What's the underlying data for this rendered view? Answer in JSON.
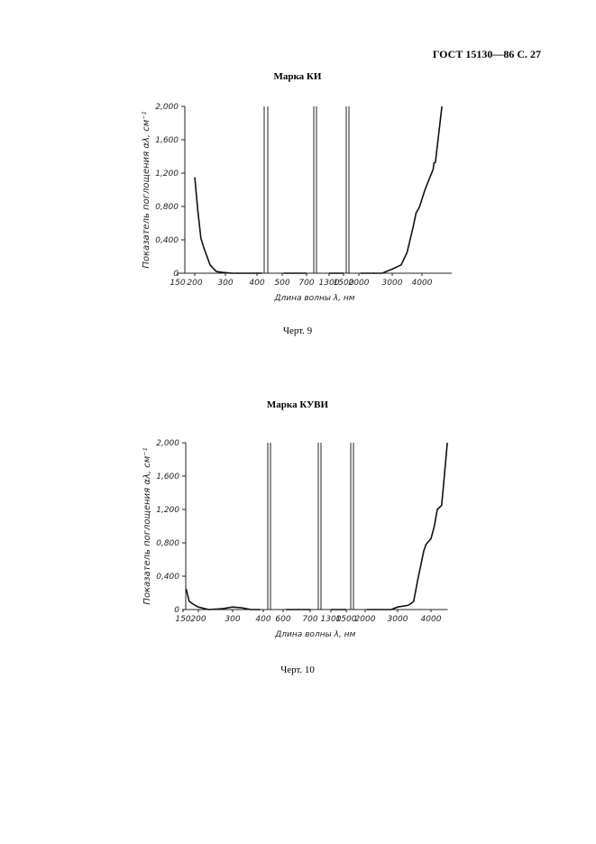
{
  "header": {
    "title": "ГОСТ 15130—86 С. 27"
  },
  "chart_data": [
    {
      "type": "line",
      "title": "Марка КИ",
      "caption": "Черт. 9",
      "x_label": "Длина волны λ, нм",
      "y_label": "Показатель поглощения αλ, см⁻¹",
      "xlim": [
        150,
        5000
      ],
      "xticks": [
        150,
        200,
        300,
        400,
        500,
        700,
        1300,
        1500,
        2000,
        3000,
        4000
      ],
      "ylim": [
        0,
        2
      ],
      "yticks": [
        0,
        {
          "value": 0.4,
          "label": "0,400"
        },
        {
          "value": 0.8,
          "label": "0,800"
        },
        {
          "value": 1.2,
          "label": "1,200"
        },
        {
          "value": 1.6,
          "label": "1,600"
        },
        {
          "value": 2,
          "label": "2,000"
        }
      ],
      "x": [
        200,
        210,
        220,
        230,
        250,
        270,
        290,
        320,
        400,
        420,
        450,
        510,
        700,
        1000,
        1300,
        1500,
        1800,
        2050,
        2700,
        3000,
        3300,
        3500,
        3700,
        3800,
        3880,
        3920,
        4100,
        4380,
        4400,
        4450,
        4670
      ],
      "series": [
        {
          "color": "#111111",
          "values": [
            1.15,
            0.75,
            0.42,
            0.3,
            0.1,
            0.02,
            0.01,
            0,
            0,
            0,
            null,
            0,
            0,
            null,
            0,
            0,
            null,
            0,
            0,
            0.05,
            0.1,
            0.25,
            0.55,
            0.72,
            0.77,
            0.8,
            1.0,
            1.25,
            1.32,
            1.33,
            2.0
          ]
        }
      ]
    },
    {
      "type": "line",
      "title": "Марка КУВИ",
      "caption": "Черт. 10",
      "x_label": "Длина волны λ, нм",
      "y_label": "Показатель поглощения αλ, см⁻¹",
      "xlim": [
        150,
        4500
      ],
      "xticks": [
        150,
        200,
        300,
        400,
        600,
        700,
        1300,
        1500,
        2000,
        3000,
        4000
      ],
      "ylim": [
        0,
        2
      ],
      "yticks": [
        0,
        {
          "value": 0.4,
          "label": "0,400"
        },
        {
          "value": 0.8,
          "label": "0,800"
        },
        {
          "value": 1.2,
          "label": "1,200"
        },
        {
          "value": 1.6,
          "label": "1,600"
        },
        {
          "value": 2,
          "label": "2,000"
        }
      ],
      "x": [
        160,
        170,
        185,
        200,
        230,
        270,
        300,
        330,
        360,
        390,
        500,
        610,
        700,
        1000,
        1300,
        1500,
        1800,
        2050,
        2800,
        3000,
        3300,
        3400,
        3480,
        3600,
        3780,
        3850,
        4000,
        4100,
        4190,
        4320,
        4400,
        4490
      ],
      "series": [
        {
          "color": "#111111",
          "values": [
            0.25,
            0.1,
            0.06,
            0.03,
            0.0,
            0.01,
            0.03,
            0.02,
            0,
            0,
            null,
            0,
            0,
            null,
            0,
            0,
            null,
            0,
            0,
            0.03,
            0.05,
            0.07,
            0.1,
            0.35,
            0.7,
            0.78,
            0.85,
            1.0,
            1.2,
            1.25,
            1.6,
            2.0
          ]
        }
      ]
    }
  ]
}
